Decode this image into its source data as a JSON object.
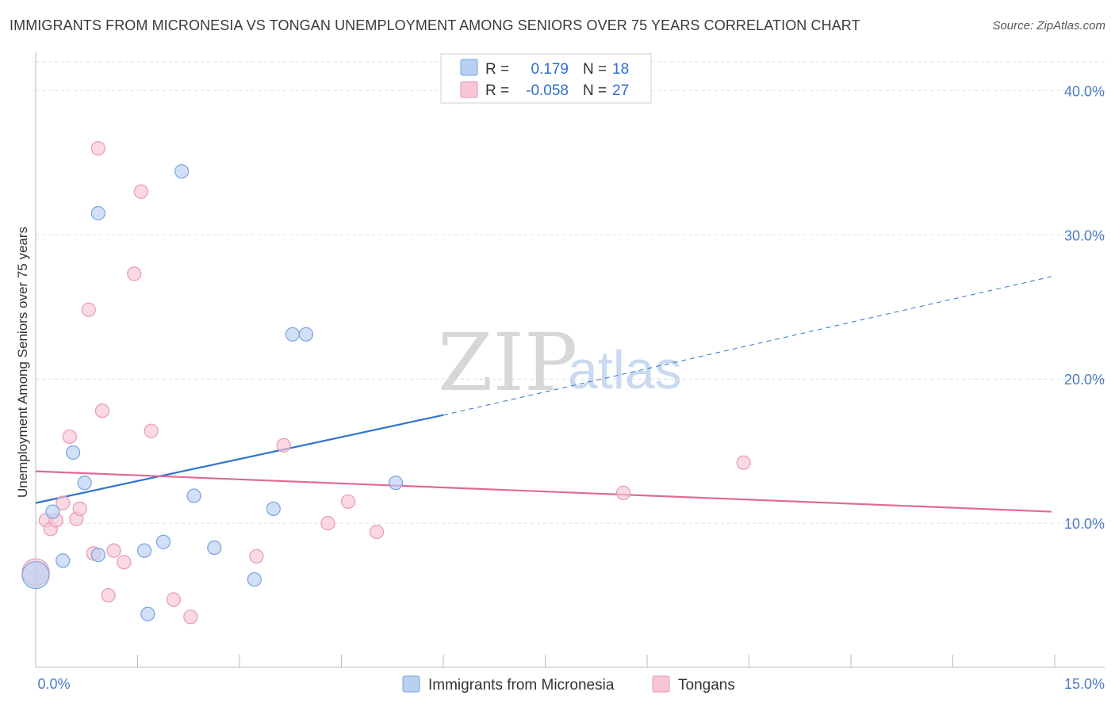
{
  "title": "IMMIGRANTS FROM MICRONESIA VS TONGAN UNEMPLOYMENT AMONG SENIORS OVER 75 YEARS CORRELATION CHART",
  "source": "Source: ZipAtlas.com",
  "watermark": {
    "zip": "ZIP",
    "atlas": "atlas"
  },
  "colors": {
    "blue_fill": "#b8d0f2",
    "blue_stroke": "#7aa3dc",
    "blue_line": "#2f74cf",
    "pink_fill": "#f7c5d4",
    "pink_stroke": "#e79ab3",
    "pink_line": "#e0699a",
    "axis_text": "#4a7cc9",
    "grid": "#dddddd"
  },
  "legend": {
    "rows": [
      {
        "r_label": "R =",
        "r_value": "0.179",
        "n_label": "N =",
        "n_value": "18"
      },
      {
        "r_label": "R =",
        "r_value": "-0.058",
        "n_label": "N =",
        "n_value": "27"
      }
    ]
  },
  "chart_data": {
    "type": "scatter",
    "title": "IMMIGRANTS FROM MICRONESIA VS TONGAN UNEMPLOYMENT AMONG SENIORS OVER 75 YEARS CORRELATION CHART",
    "xlabel": "",
    "ylabel": "Unemployment Among Seniors over 75 years",
    "xlim": [
      0,
      15
    ],
    "ylim": [
      0,
      42
    ],
    "x_tick_labels": {
      "min": "0.0%",
      "max": "15.0%"
    },
    "y_ticks": [
      {
        "value": 10,
        "label": "10.0%"
      },
      {
        "value": 20,
        "label": "20.0%"
      },
      {
        "value": 30,
        "label": "30.0%"
      },
      {
        "value": 40,
        "label": "40.0%"
      }
    ],
    "series": [
      {
        "name": "Immigrants from Micronesia",
        "color": "blue",
        "R": 0.179,
        "N": 18,
        "points": [
          {
            "x": 0.0,
            "y": 6.4,
            "size": "large"
          },
          {
            "x": 0.25,
            "y": 10.8
          },
          {
            "x": 0.4,
            "y": 7.4
          },
          {
            "x": 0.55,
            "y": 14.9
          },
          {
            "x": 0.72,
            "y": 12.8
          },
          {
            "x": 0.92,
            "y": 7.8
          },
          {
            "x": 0.92,
            "y": 31.5
          },
          {
            "x": 1.6,
            "y": 8.1
          },
          {
            "x": 1.65,
            "y": 3.7
          },
          {
            "x": 1.88,
            "y": 8.7
          },
          {
            "x": 2.15,
            "y": 34.4
          },
          {
            "x": 2.33,
            "y": 11.9
          },
          {
            "x": 2.63,
            "y": 8.3
          },
          {
            "x": 3.22,
            "y": 6.1
          },
          {
            "x": 3.5,
            "y": 11.0
          },
          {
            "x": 3.78,
            "y": 23.1
          },
          {
            "x": 3.98,
            "y": 23.1
          },
          {
            "x": 5.3,
            "y": 12.8
          }
        ],
        "trend": {
          "x_start": 0,
          "y_start": 11.4,
          "x_solid_end": 6.0,
          "y_solid_end": 17.5,
          "x_end": 14.95,
          "y_end": 27.1
        }
      },
      {
        "name": "Tongans",
        "color": "pink",
        "R": -0.058,
        "N": 27,
        "points": [
          {
            "x": 0.0,
            "y": 6.6,
            "size": "large"
          },
          {
            "x": 0.15,
            "y": 10.2
          },
          {
            "x": 0.22,
            "y": 9.6
          },
          {
            "x": 0.3,
            "y": 10.2
          },
          {
            "x": 0.4,
            "y": 11.4
          },
          {
            "x": 0.5,
            "y": 16.0
          },
          {
            "x": 0.6,
            "y": 10.3
          },
          {
            "x": 0.65,
            "y": 11.0
          },
          {
            "x": 0.78,
            "y": 24.8
          },
          {
            "x": 0.85,
            "y": 7.9
          },
          {
            "x": 0.92,
            "y": 36.0
          },
          {
            "x": 0.98,
            "y": 17.8
          },
          {
            "x": 1.07,
            "y": 5.0
          },
          {
            "x": 1.15,
            "y": 8.1
          },
          {
            "x": 1.3,
            "y": 7.3
          },
          {
            "x": 1.45,
            "y": 27.3
          },
          {
            "x": 1.55,
            "y": 33.0
          },
          {
            "x": 1.7,
            "y": 16.4
          },
          {
            "x": 2.03,
            "y": 4.7
          },
          {
            "x": 2.28,
            "y": 3.5
          },
          {
            "x": 3.25,
            "y": 7.7
          },
          {
            "x": 3.65,
            "y": 15.4
          },
          {
            "x": 4.3,
            "y": 10.0
          },
          {
            "x": 4.6,
            "y": 11.5
          },
          {
            "x": 5.02,
            "y": 9.4
          },
          {
            "x": 8.65,
            "y": 12.1
          },
          {
            "x": 10.42,
            "y": 14.2
          }
        ],
        "trend": {
          "x_start": 0,
          "y_start": 13.6,
          "x_end": 14.95,
          "y_end": 10.8
        }
      }
    ]
  }
}
